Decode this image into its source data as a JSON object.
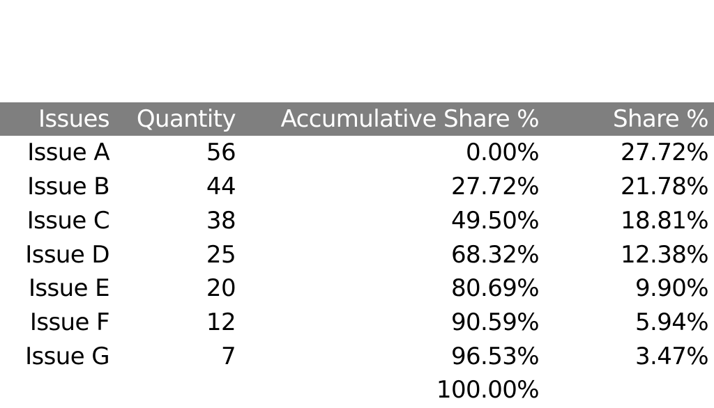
{
  "table": {
    "headers": [
      "Issues",
      "Quantity",
      "Accumulative Share %",
      "Share %"
    ],
    "rows": [
      {
        "issue": "Issue A",
        "quantity": "56",
        "accumulative_share": "0.00%",
        "share": "27.72%"
      },
      {
        "issue": "Issue B",
        "quantity": "44",
        "accumulative_share": "27.72%",
        "share": "21.78%"
      },
      {
        "issue": "Issue C",
        "quantity": "38",
        "accumulative_share": "49.50%",
        "share": "18.81%"
      },
      {
        "issue": "Issue D",
        "quantity": "25",
        "accumulative_share": "68.32%",
        "share": "12.38%"
      },
      {
        "issue": "Issue E",
        "quantity": "20",
        "accumulative_share": "80.69%",
        "share": "9.90%"
      },
      {
        "issue": "Issue F",
        "quantity": "12",
        "accumulative_share": "90.59%",
        "share": "5.94%"
      },
      {
        "issue": "Issue G",
        "quantity": "7",
        "accumulative_share": "96.53%",
        "share": "3.47%"
      }
    ],
    "trailing_accumulative_share": "100.00%"
  },
  "colors": {
    "header_background": "#7f7f7f",
    "header_text": "#ffffff",
    "body_text": "#000000",
    "page_background": "#ffffff"
  }
}
